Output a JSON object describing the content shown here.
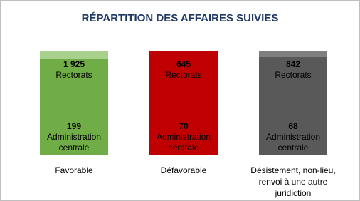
{
  "chart_data": {
    "type": "stacked_bar_percent",
    "title": "RÉPARTITION DES AFFAIRES SUIVIES",
    "categories": [
      "Favorable",
      "Défavorable",
      "Désistement, non-lieu, renvoi à une autre juridiction"
    ],
    "series": [
      {
        "name": "Rectorats",
        "color": [
          "#70ad47",
          "#c00000",
          "#595959"
        ],
        "values": [
          1925,
          645,
          842
        ],
        "value_labels": [
          "1 925",
          "645",
          "842"
        ]
      },
      {
        "name": "Administration centrale",
        "color": [
          "#a9d18e",
          "#c00000",
          "#7f7f7f"
        ],
        "values": [
          199,
          70,
          68
        ],
        "value_labels": [
          "199",
          "70",
          "68"
        ]
      }
    ]
  }
}
